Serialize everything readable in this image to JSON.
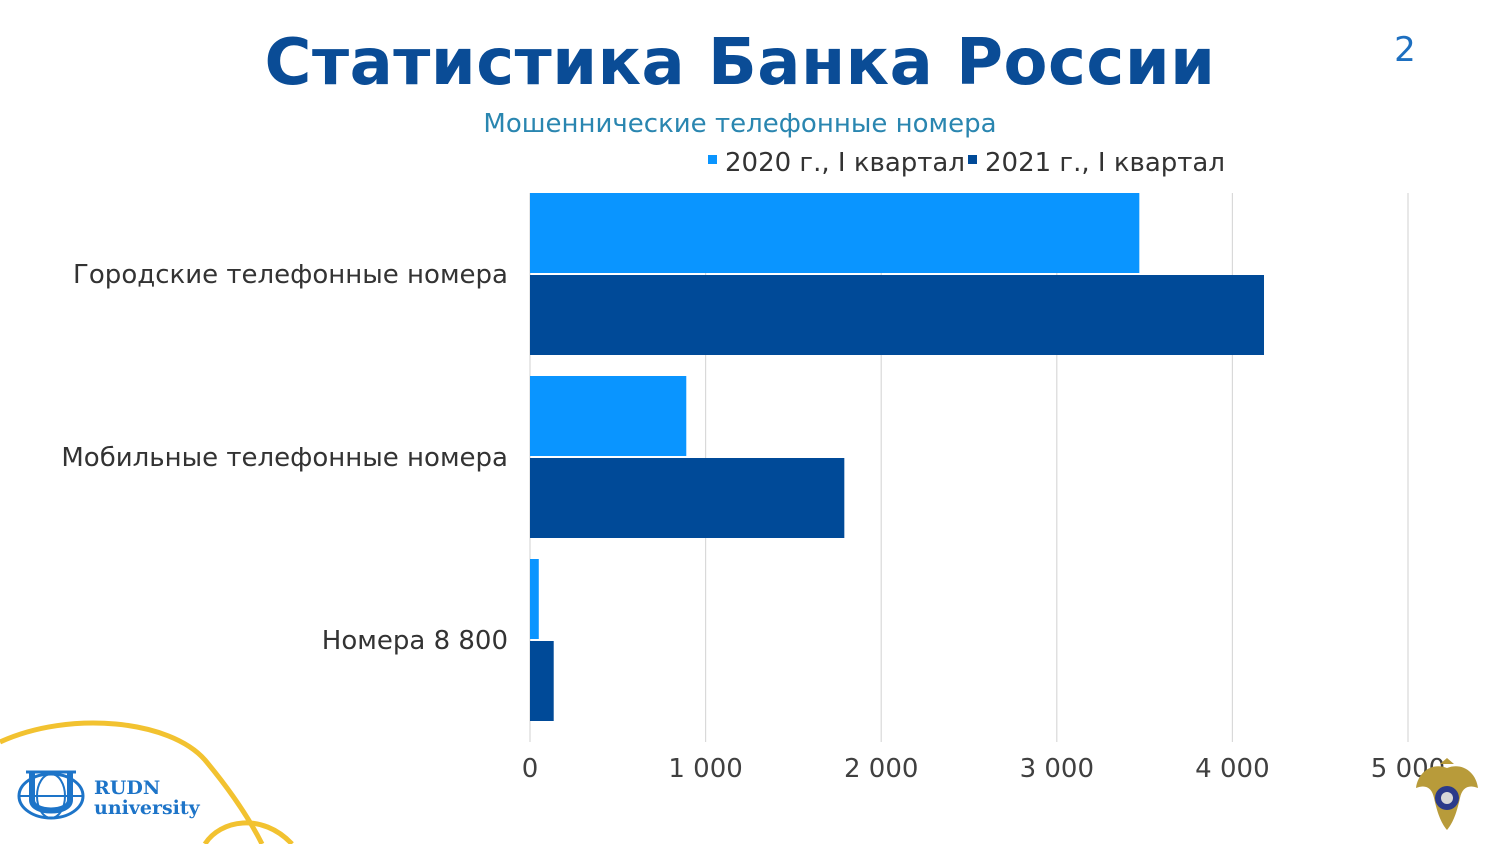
{
  "slide": {
    "title": "Статистика Банка России",
    "page_number": "2"
  },
  "logo": {
    "line1": "RUDN",
    "line2": "university",
    "icon": "rudn-globe-logo-icon"
  },
  "emblem_icon": "eagle-emblem-icon",
  "colors": {
    "title": "#0a4c96",
    "subtitle": "#2a86b0",
    "series_2020": "#0a95ff",
    "series_2021": "#004a98",
    "grid": "#d9d9d9",
    "decor_curve": "#f2c230"
  },
  "chart_data": {
    "type": "bar",
    "orientation": "horizontal",
    "title": "Мошеннические телефонные номера",
    "categories": [
      "Городские телефонные номера",
      "Мобильные телефонные номера",
      "Номера 8 800"
    ],
    "series": [
      {
        "name": "2020 г., I квартал",
        "values": [
          3470,
          890,
          50
        ]
      },
      {
        "name": "2021 г., I квартал",
        "values": [
          4180,
          1790,
          135
        ]
      }
    ],
    "xlim": [
      0,
      5000
    ],
    "ticks": [
      0,
      1000,
      2000,
      3000,
      4000,
      5000
    ],
    "tick_labels": [
      "0",
      "1 000",
      "2 000",
      "3 000",
      "4 000",
      "5 000"
    ],
    "grid": true,
    "legend": "top"
  }
}
